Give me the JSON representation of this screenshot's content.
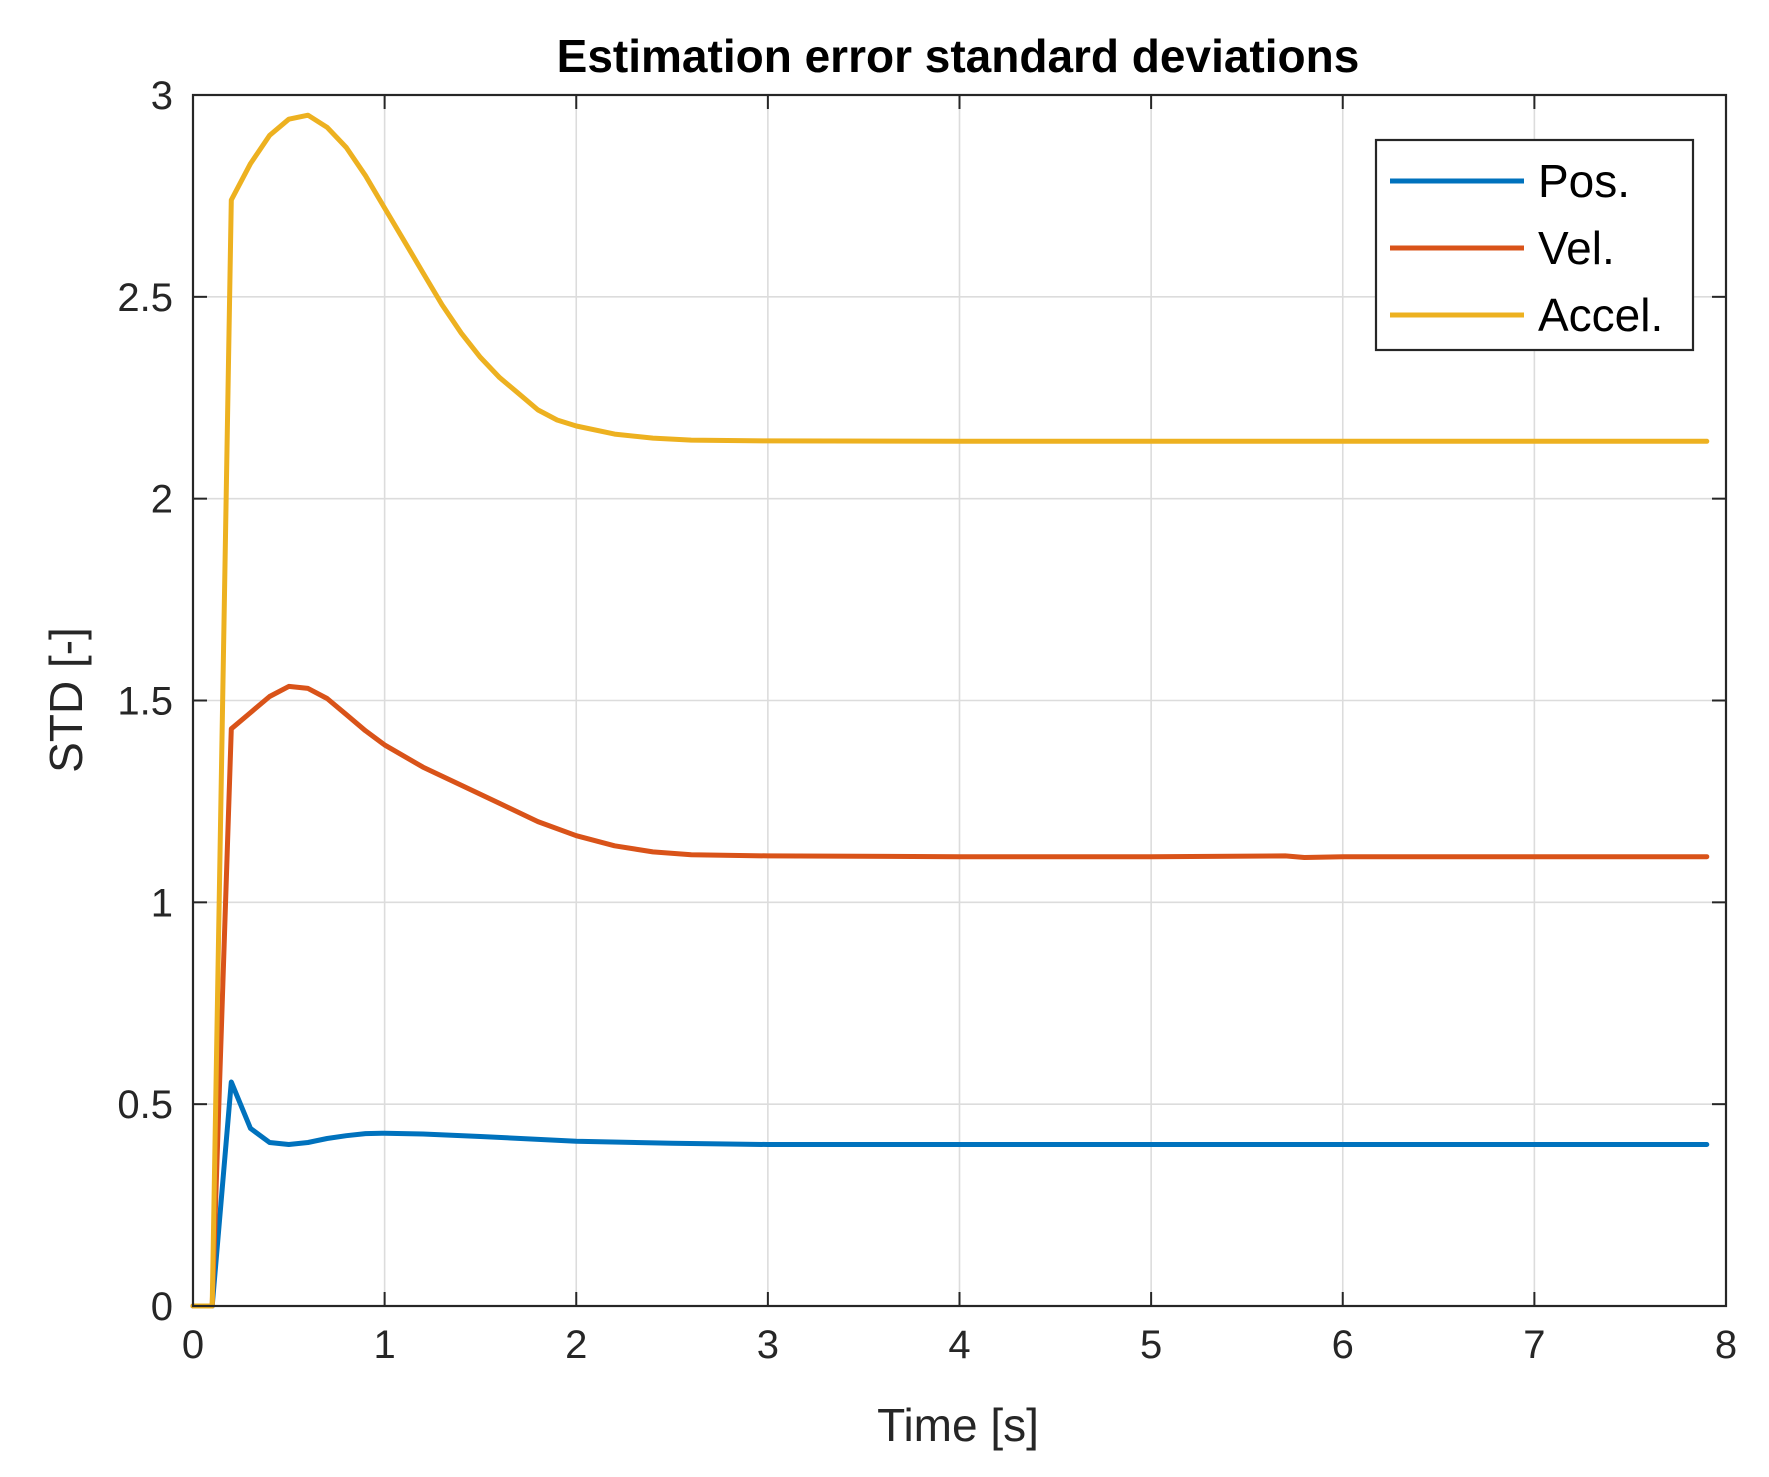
{
  "chart_data": {
    "type": "line",
    "title": "Estimation error standard deviations",
    "xlabel": "Time [s]",
    "ylabel": "STD [-]",
    "xlim": [
      0,
      8
    ],
    "ylim": [
      0,
      3
    ],
    "xticks": [
      "0",
      "1",
      "2",
      "3",
      "4",
      "5",
      "6",
      "7",
      "8"
    ],
    "yticks": [
      "0",
      "0.5",
      "1",
      "1.5",
      "2",
      "2.5",
      "3"
    ],
    "grid": true,
    "legend_position": "top-right",
    "series": [
      {
        "name": "Pos.",
        "color": "#0072BD",
        "x": [
          0,
          0.1,
          0.2,
          0.3,
          0.4,
          0.5,
          0.6,
          0.7,
          0.8,
          0.9,
          1.0,
          1.2,
          1.5,
          2.0,
          2.5,
          3.0,
          4.0,
          5.0,
          6.0,
          7.0,
          7.9
        ],
        "y": [
          0,
          0,
          0.555,
          0.44,
          0.405,
          0.4,
          0.405,
          0.415,
          0.422,
          0.427,
          0.428,
          0.426,
          0.42,
          0.408,
          0.403,
          0.4,
          0.4,
          0.4,
          0.4,
          0.4,
          0.4
        ]
      },
      {
        "name": "Vel.",
        "color": "#D95319",
        "x": [
          0,
          0.1,
          0.2,
          0.3,
          0.4,
          0.5,
          0.6,
          0.7,
          0.8,
          0.9,
          1.0,
          1.2,
          1.4,
          1.6,
          1.8,
          2.0,
          2.2,
          2.4,
          2.6,
          3.0,
          4.0,
          5.0,
          5.7,
          5.8,
          6.0,
          7.0,
          7.9
        ],
        "y": [
          0,
          0,
          1.43,
          1.47,
          1.51,
          1.535,
          1.53,
          1.505,
          1.465,
          1.425,
          1.39,
          1.335,
          1.29,
          1.245,
          1.2,
          1.165,
          1.14,
          1.125,
          1.118,
          1.115,
          1.113,
          1.113,
          1.115,
          1.111,
          1.113,
          1.113,
          1.113
        ]
      },
      {
        "name": "Accel.",
        "color": "#EDB120",
        "x": [
          0,
          0.1,
          0.2,
          0.3,
          0.4,
          0.5,
          0.6,
          0.7,
          0.8,
          0.9,
          1.0,
          1.1,
          1.2,
          1.3,
          1.4,
          1.5,
          1.6,
          1.7,
          1.8,
          1.9,
          2.0,
          2.2,
          2.4,
          2.6,
          3.0,
          4.0,
          5.0,
          6.0,
          7.0,
          7.9
        ],
        "y": [
          0,
          0,
          2.74,
          2.83,
          2.9,
          2.94,
          2.95,
          2.92,
          2.87,
          2.8,
          2.72,
          2.64,
          2.56,
          2.48,
          2.41,
          2.35,
          2.3,
          2.26,
          2.22,
          2.195,
          2.18,
          2.16,
          2.15,
          2.145,
          2.143,
          2.142,
          2.142,
          2.142,
          2.142,
          2.142
        ]
      }
    ]
  }
}
